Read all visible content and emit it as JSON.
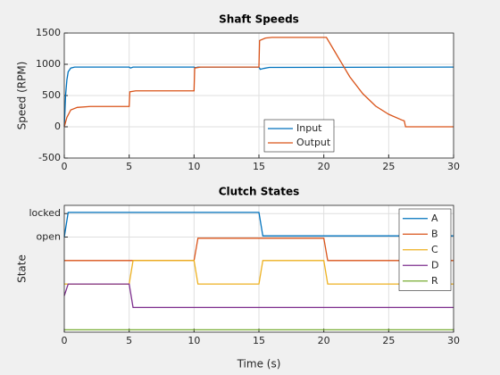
{
  "chart_data": [
    {
      "type": "line",
      "title": "Shaft Speeds",
      "ylabel": "Speed (RPM)",
      "xlim": [
        0,
        30
      ],
      "xticks": [
        0,
        5,
        10,
        15,
        20,
        25,
        30
      ],
      "ylim": [
        -500,
        1500
      ],
      "yticks": [
        -500,
        0,
        500,
        1000,
        1500
      ],
      "grid": true,
      "legend": "south",
      "series": [
        {
          "name": "Input",
          "color": "#0072bd",
          "x": [
            0,
            0.1,
            0.2,
            0.3,
            0.5,
            0.8,
            5,
            5.1,
            5.3,
            10,
            10.1,
            10.3,
            15,
            15.1,
            15.4,
            15.8,
            30
          ],
          "values": [
            0,
            500,
            750,
            880,
            940,
            955,
            955,
            940,
            955,
            955,
            945,
            955,
            955,
            920,
            935,
            950,
            955
          ]
        },
        {
          "name": "Output",
          "color": "#d95319",
          "x": [
            0,
            0.2,
            0.5,
            1,
            2,
            5,
            5.05,
            5.5,
            10,
            10.05,
            10.5,
            15,
            15.05,
            15.5,
            16,
            20.2,
            21,
            22,
            23,
            24,
            25,
            26,
            26.2,
            26.3,
            30
          ],
          "values": [
            0,
            150,
            270,
            310,
            325,
            325,
            560,
            575,
            575,
            940,
            955,
            955,
            1380,
            1420,
            1430,
            1430,
            1150,
            800,
            530,
            330,
            200,
            110,
            95,
            0,
            0
          ]
        }
      ]
    },
    {
      "type": "line",
      "title": "Clutch States",
      "xlabel": "Time (s)",
      "ylabel": "State",
      "xlim": [
        0,
        30
      ],
      "xticks": [
        0,
        5,
        10,
        15,
        20,
        25,
        30
      ],
      "ylim": [
        -4.05,
        1.35
      ],
      "yticks": [
        {
          "value": 1,
          "label": "locked"
        },
        {
          "value": 0,
          "label": "open"
        }
      ],
      "grid": true,
      "legend": "northeast",
      "series": [
        {
          "name": "A",
          "color": "#0072bd",
          "x": [
            0,
            0.3,
            15,
            15.3,
            30
          ],
          "values": [
            0,
            1.05,
            1.05,
            0.05,
            0.05
          ]
        },
        {
          "name": "B",
          "color": "#d95319",
          "x": [
            0,
            10,
            10.3,
            20,
            20.3,
            30
          ],
          "values": [
            -1,
            -1,
            -0.05,
            -0.05,
            -1,
            -1
          ]
        },
        {
          "name": "C",
          "color": "#edb120",
          "x": [
            0,
            5,
            5.3,
            10,
            10.3,
            15,
            15.3,
            20,
            20.3,
            30
          ],
          "values": [
            -2,
            -2,
            -1,
            -1,
            -2,
            -2,
            -1,
            -1,
            -2,
            -2
          ]
        },
        {
          "name": "D",
          "color": "#7e2f8e",
          "x": [
            0,
            0.3,
            5,
            5.3,
            30
          ],
          "values": [
            -2.5,
            -2,
            -2,
            -3,
            -3
          ]
        },
        {
          "name": "R",
          "color": "#77ac30",
          "x": [
            0,
            30
          ],
          "values": [
            -3.95,
            -3.95
          ]
        }
      ]
    }
  ]
}
